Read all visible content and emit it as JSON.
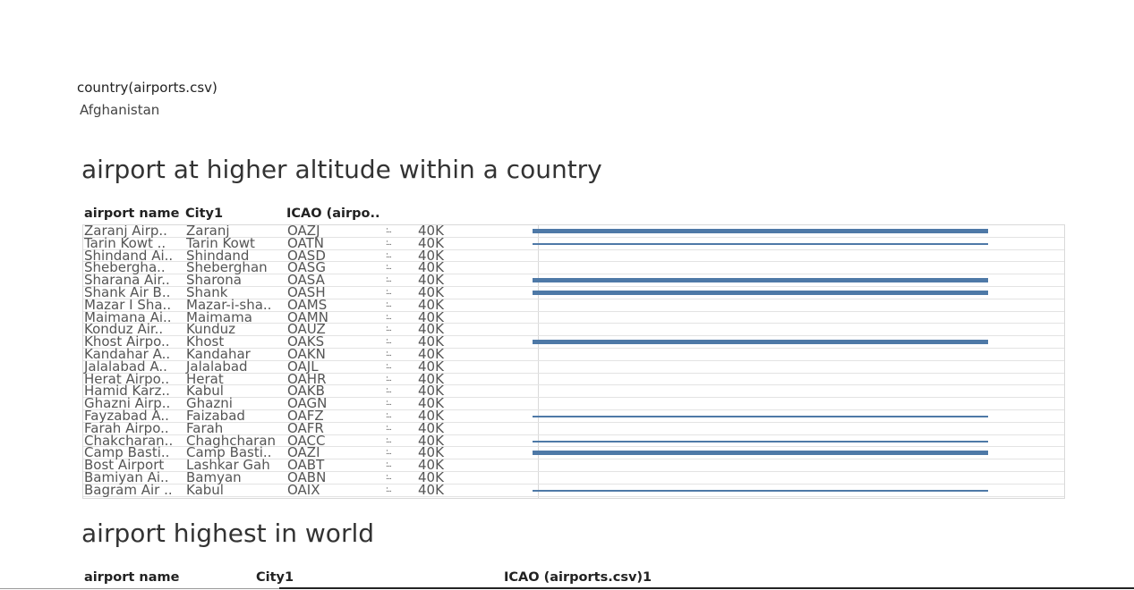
{
  "filter": {
    "label": "country(airports.csv)",
    "value": "Afghanistan"
  },
  "section1": {
    "title": "airport at higher altitude within a country",
    "columns": {
      "name": "airport name",
      "city": "City1",
      "icao": "ICAO (airpo.."
    },
    "rows": [
      {
        "name": "Zaranj Airp..",
        "city": "Zaranj",
        "icao": "OAZJ",
        "mini": ":..",
        "axis": "40K",
        "bar": "thick"
      },
      {
        "name": "Tarin Kowt ..",
        "city": "Tarin Kowt",
        "icao": "OATN",
        "mini": ":..",
        "axis": "40K",
        "bar": "thin"
      },
      {
        "name": "Shindand Ai..",
        "city": "Shindand",
        "icao": "OASD",
        "mini": ":..",
        "axis": "40K",
        "bar": ""
      },
      {
        "name": "Shebergha..",
        "city": "Sheberghan",
        "icao": "OASG",
        "mini": ":..",
        "axis": "40K",
        "bar": ""
      },
      {
        "name": "Sharana Air..",
        "city": "Sharona",
        "icao": "OASA",
        "mini": ":..",
        "axis": "40K",
        "bar": "thick"
      },
      {
        "name": "Shank Air B..",
        "city": "Shank",
        "icao": "OASH",
        "mini": ":..",
        "axis": "40K",
        "bar": "thick"
      },
      {
        "name": "Mazar I Sha..",
        "city": "Mazar-i-sha..",
        "icao": "OAMS",
        "mini": ":..",
        "axis": "40K",
        "bar": ""
      },
      {
        "name": "Maimana Ai..",
        "city": "Maimama",
        "icao": "OAMN",
        "mini": ":..",
        "axis": "40K",
        "bar": ""
      },
      {
        "name": "Konduz Air..",
        "city": "Kunduz",
        "icao": "OAUZ",
        "mini": ":..",
        "axis": "40K",
        "bar": ""
      },
      {
        "name": "Khost Airpo..",
        "city": "Khost",
        "icao": "OAKS",
        "mini": ":..",
        "axis": "40K",
        "bar": "thick"
      },
      {
        "name": "Kandahar A..",
        "city": "Kandahar",
        "icao": "OAKN",
        "mini": ":..",
        "axis": "40K",
        "bar": ""
      },
      {
        "name": "Jalalabad A..",
        "city": "Jalalabad",
        "icao": "OAJL",
        "mini": ":..",
        "axis": "40K",
        "bar": ""
      },
      {
        "name": "Herat Airpo..",
        "city": "Herat",
        "icao": "OAHR",
        "mini": ":..",
        "axis": "40K",
        "bar": ""
      },
      {
        "name": "Hamid Karz..",
        "city": "Kabul",
        "icao": "OAKB",
        "mini": ":..",
        "axis": "40K",
        "bar": ""
      },
      {
        "name": "Ghazni Airp..",
        "city": "Ghazni",
        "icao": "OAGN",
        "mini": ":..",
        "axis": "40K",
        "bar": ""
      },
      {
        "name": "Fayzabad A..",
        "city": "Faizabad",
        "icao": "OAFZ",
        "mini": ":..",
        "axis": "40K",
        "bar": "thin"
      },
      {
        "name": "Farah Airpo..",
        "city": "Farah",
        "icao": "OAFR",
        "mini": ":..",
        "axis": "40K",
        "bar": ""
      },
      {
        "name": "Chakcharan..",
        "city": "Chaghcharan",
        "icao": "OACC",
        "mini": ":..",
        "axis": "40K",
        "bar": "thin"
      },
      {
        "name": "Camp Basti..",
        "city": "Camp Basti..",
        "icao": "OAZI",
        "mini": ":..",
        "axis": "40K",
        "bar": "thick"
      },
      {
        "name": "Bost Airport",
        "city": "Lashkar Gah",
        "icao": "OABT",
        "mini": ":..",
        "axis": "40K",
        "bar": ""
      },
      {
        "name": "Bamiyan Ai..",
        "city": "Bamyan",
        "icao": "OABN",
        "mini": ":..",
        "axis": "40K",
        "bar": ""
      },
      {
        "name": "Bagram Air ..",
        "city": "Kabul",
        "icao": "OAIX",
        "mini": ":..",
        "axis": "40K",
        "bar": "thin"
      }
    ]
  },
  "section2": {
    "title": "airport highest in world",
    "columns": {
      "name": "airport name",
      "city": "City1",
      "icao": "ICAO (airports.csv)1"
    }
  },
  "colors": {
    "bar": "#4e79a7"
  }
}
